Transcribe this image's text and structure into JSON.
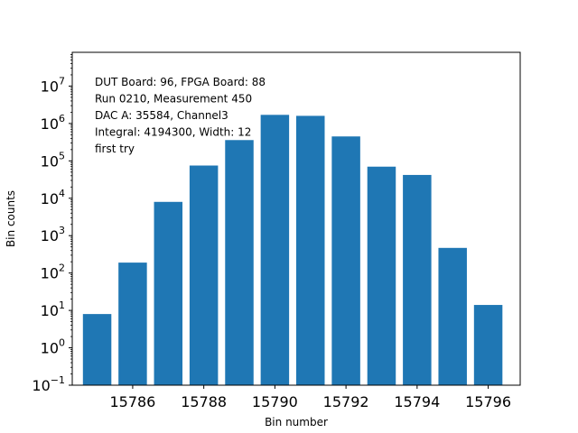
{
  "chart_data": {
    "type": "bar",
    "xlabel": "Bin number",
    "ylabel": "Bin counts",
    "yscale": "log",
    "ylim": [
      0.1,
      80000000
    ],
    "xlim": [
      15784.3,
      15796.9
    ],
    "x_ticks": [
      15786,
      15788,
      15790,
      15792,
      15794,
      15796
    ],
    "y_ticks": [
      {
        "value": 0.1,
        "base": "10",
        "exp": "−1"
      },
      {
        "value": 1,
        "base": "10",
        "exp": "0"
      },
      {
        "value": 10,
        "base": "10",
        "exp": "1"
      },
      {
        "value": 100,
        "base": "10",
        "exp": "2"
      },
      {
        "value": 1000,
        "base": "10",
        "exp": "3"
      },
      {
        "value": 10000,
        "base": "10",
        "exp": "4"
      },
      {
        "value": 100000,
        "base": "10",
        "exp": "5"
      },
      {
        "value": 1000000,
        "base": "10",
        "exp": "6"
      },
      {
        "value": 10000000,
        "base": "10",
        "exp": "7"
      }
    ],
    "bar_color": "#1f77b4",
    "bar_width": 0.8,
    "grid": false,
    "x": [
      15785,
      15786,
      15787,
      15788,
      15789,
      15790,
      15791,
      15792,
      15793,
      15794,
      15795,
      15796
    ],
    "values": [
      8,
      190,
      8000,
      75000,
      360000,
      1700000,
      1600000,
      450000,
      70000,
      42000,
      470,
      14
    ],
    "annotations": [
      "DUT Board: 96, FPGA Board: 88",
      "Run 0210, Measurement 450",
      "DAC A: 35584, Channel3",
      "Integral: 4194300, Width: 12",
      "first try"
    ]
  }
}
